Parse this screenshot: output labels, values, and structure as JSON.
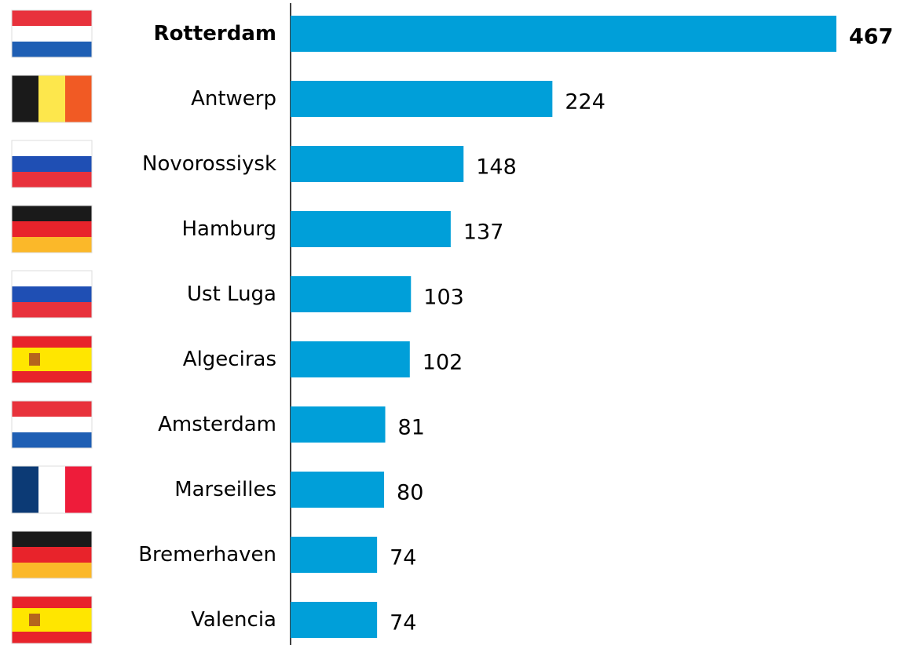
{
  "chart_data": {
    "type": "hbar",
    "categories": [
      "Rotterdam",
      "Antwerp",
      "Novorossiysk",
      "Hamburg",
      "Ust Luga",
      "Algeciras",
      "Amsterdam",
      "Marseilles",
      "Bremerhaven",
      "Valencia"
    ],
    "values": [
      467,
      224,
      148,
      137,
      103,
      102,
      81,
      80,
      74,
      74
    ],
    "color": "#009fd9",
    "highlight_index": 0
  }
}
